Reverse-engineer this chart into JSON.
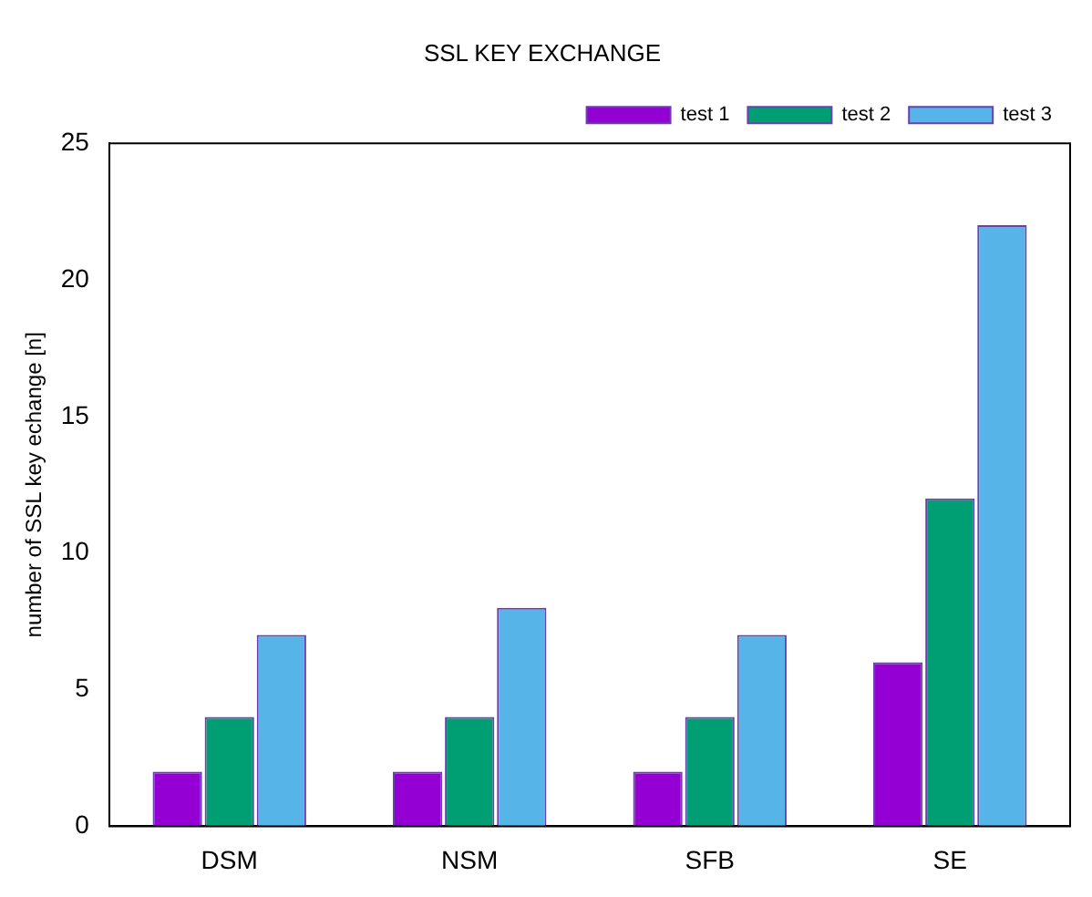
{
  "chart_data": {
    "type": "bar",
    "title": "SSL KEY EXCHANGE",
    "ylabel": "number of SSL key echange [n]",
    "categories": [
      "DSM",
      "NSM",
      "SFB",
      "SE"
    ],
    "series": [
      {
        "name": "test 1",
        "color": "#9400d3",
        "values": [
          2,
          2,
          2,
          6
        ]
      },
      {
        "name": "test 2",
        "color": "#009e73",
        "values": [
          4,
          4,
          4,
          12
        ]
      },
      {
        "name": "test 3",
        "color": "#56b4e9",
        "values": [
          7,
          8,
          7,
          22
        ]
      }
    ],
    "ylim": [
      0,
      25
    ],
    "yticks": [
      0,
      5,
      10,
      15,
      20,
      25
    ],
    "grid": false,
    "legend": "top right"
  }
}
